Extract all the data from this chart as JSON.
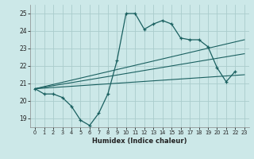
{
  "xlabel": "Humidex (Indice chaleur)",
  "bg_color": "#cce8e8",
  "grid_color": "#aacccc",
  "line_color": "#1a6060",
  "xlim": [
    -0.5,
    23.5
  ],
  "ylim": [
    18.5,
    25.5
  ],
  "yticks": [
    19,
    20,
    21,
    22,
    23,
    24,
    25
  ],
  "xticks": [
    0,
    1,
    2,
    3,
    4,
    5,
    6,
    7,
    8,
    9,
    10,
    11,
    12,
    13,
    14,
    15,
    16,
    17,
    18,
    19,
    20,
    21,
    22,
    23
  ],
  "series1_x": [
    0,
    1,
    2,
    3,
    4,
    5,
    6,
    7,
    8,
    9,
    10,
    11,
    12,
    13,
    14,
    15,
    16,
    17,
    18,
    19,
    20,
    21,
    22
  ],
  "series1_y": [
    20.7,
    20.4,
    20.4,
    20.2,
    19.7,
    18.9,
    18.6,
    19.3,
    20.4,
    22.3,
    25.0,
    25.0,
    24.1,
    24.4,
    24.6,
    24.4,
    23.6,
    23.5,
    23.5,
    23.1,
    21.9,
    21.1,
    21.7
  ],
  "line2": [
    [
      0,
      23
    ],
    [
      20.7,
      23.5
    ]
  ],
  "line3": [
    [
      0,
      23
    ],
    [
      20.7,
      22.7
    ]
  ],
  "line4": [
    [
      0,
      23
    ],
    [
      20.7,
      21.5
    ]
  ]
}
